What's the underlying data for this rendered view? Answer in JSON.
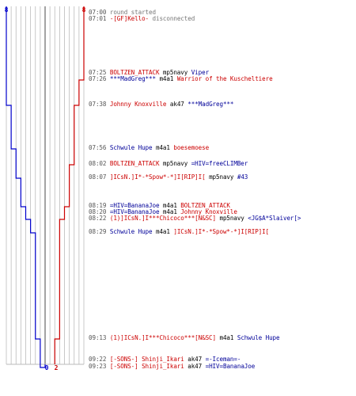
{
  "colors": {
    "blue_team": "#0000cc",
    "red_team": "#cc0000",
    "grid": "#bbbbbb",
    "axis": "#666666"
  },
  "timeline": {
    "blue_start": "8",
    "red_start": "8",
    "blue_end": "0",
    "red_end": "2",
    "blue_steps": [
      {
        "t": "07:25",
        "v": 8
      },
      {
        "t": "07:38",
        "v": 7
      },
      {
        "t": "07:56",
        "v": 6
      },
      {
        "t": "08:07",
        "v": 5
      },
      {
        "t": "08:19",
        "v": 4
      },
      {
        "t": "08:22",
        "v": 3
      },
      {
        "t": "08:29",
        "v": 2
      },
      {
        "t": "09:13",
        "v": 1
      },
      {
        "t": "09:23",
        "v": 0
      }
    ],
    "red_steps": [
      {
        "t": "07:25",
        "v": 8
      },
      {
        "t": "07:26",
        "v": 7
      },
      {
        "t": "07:38",
        "v": 6
      },
      {
        "t": "08:02",
        "v": 5
      },
      {
        "t": "08:19",
        "v": 4
      },
      {
        "t": "08:22",
        "v": 3
      },
      {
        "t": "09:13",
        "v": 2
      }
    ]
  },
  "events": [
    {
      "time": "07:00",
      "parts": [
        {
          "text": "round started",
          "color": "gray"
        }
      ]
    },
    {
      "time": "07:01",
      "parts": [
        {
          "text": "-[GF]Kello-",
          "color": "red"
        },
        {
          "text": " disconnected",
          "color": "gray"
        }
      ]
    },
    {
      "time": "07:25",
      "parts": [
        {
          "text": "BOLTZEN_ATTACK",
          "color": "red"
        },
        {
          "text": " mp5navy ",
          "color": "dark"
        },
        {
          "text": "Viper",
          "color": "blue"
        }
      ]
    },
    {
      "time": "07:26",
      "parts": [
        {
          "text": "***MadGreg***",
          "color": "blue"
        },
        {
          "text": " m4a1 ",
          "color": "dark"
        },
        {
          "text": "Warrior of the Kuscheltiere",
          "color": "red"
        }
      ]
    },
    {
      "time": "07:38",
      "parts": [
        {
          "text": "Johnny Knoxville",
          "color": "red"
        },
        {
          "text": " ak47 ",
          "color": "dark"
        },
        {
          "text": "***MadGreg***",
          "color": "blue"
        }
      ]
    },
    {
      "time": "07:56",
      "parts": [
        {
          "text": "Schwule Hupe",
          "color": "blue"
        },
        {
          "text": " m4a1 ",
          "color": "dark"
        },
        {
          "text": "boesemoese",
          "color": "red"
        }
      ]
    },
    {
      "time": "08:02",
      "parts": [
        {
          "text": "BOLTZEN_ATTACK",
          "color": "red"
        },
        {
          "text": " mp5navy ",
          "color": "dark"
        },
        {
          "text": "=HIV=freeCLIMBer",
          "color": "blue"
        }
      ]
    },
    {
      "time": "08:07",
      "parts": [
        {
          "text": "]ICsN.]I*-*Spow*-*]I[RIP]I[",
          "color": "red"
        },
        {
          "text": " mp5navy ",
          "color": "dark"
        },
        {
          "text": "#43",
          "color": "blue"
        }
      ]
    },
    {
      "time": "08:19",
      "parts": [
        {
          "text": "=HIV=BananaJoe",
          "color": "blue"
        },
        {
          "text": " m4a1 ",
          "color": "dark"
        },
        {
          "text": "BOLTZEN_ATTACK",
          "color": "red"
        }
      ]
    },
    {
      "time": "08:20",
      "parts": [
        {
          "text": "=HIV=BananaJoe",
          "color": "blue"
        },
        {
          "text": " m4a1 ",
          "color": "dark"
        },
        {
          "text": "Johnny Knoxville",
          "color": "red"
        }
      ]
    },
    {
      "time": "08:22",
      "parts": [
        {
          "text": "(1)]ICsN.]I***Chicoco***[N&SC]",
          "color": "red"
        },
        {
          "text": " mp5navy ",
          "color": "dark"
        },
        {
          "text": "<JG$A*Slaiver[>",
          "color": "blue"
        }
      ]
    },
    {
      "time": "08:29",
      "parts": [
        {
          "text": "Schwule Hupe",
          "color": "blue"
        },
        {
          "text": " m4a1 ",
          "color": "dark"
        },
        {
          "text": "]ICsN.]I*-*Spow*-*]I[RIP]I[",
          "color": "red"
        }
      ]
    },
    {
      "time": "09:13",
      "parts": [
        {
          "text": "(1)]ICsN.]I***Chicoco***[N&SC]",
          "color": "red"
        },
        {
          "text": " m4a1 ",
          "color": "dark"
        },
        {
          "text": "Schwule Hupe",
          "color": "blue"
        }
      ]
    },
    {
      "time": "09:22",
      "parts": [
        {
          "text": "[-SONS-] Shinji_Ikari",
          "color": "red"
        },
        {
          "text": " ak47 ",
          "color": "dark"
        },
        {
          "text": "=-Iceman=-",
          "color": "blue"
        }
      ]
    },
    {
      "time": "09:23",
      "parts": [
        {
          "text": "[-SONS-] Shinji_Ikari",
          "color": "red"
        },
        {
          "text": " ak47 ",
          "color": "dark"
        },
        {
          "text": "=HIV=BananaJoe",
          "color": "blue"
        }
      ]
    }
  ]
}
